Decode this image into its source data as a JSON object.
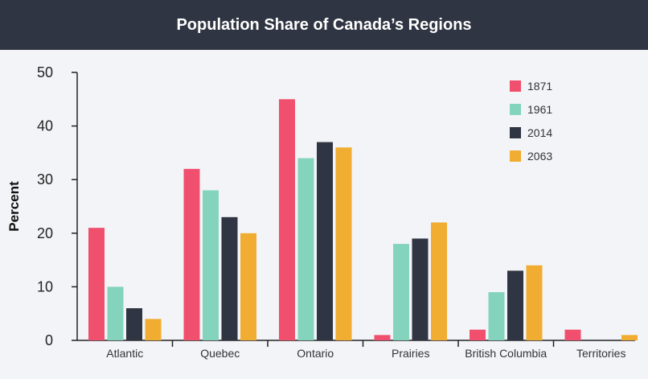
{
  "chart_data": {
    "type": "bar",
    "title": "Population Share of Canada’s Regions",
    "xlabel": "",
    "ylabel": "Percent",
    "ylim": [
      0,
      50
    ],
    "yticks": [
      0,
      10,
      20,
      30,
      40,
      50
    ],
    "grid": false,
    "legend_position": "top-right",
    "categories": [
      "Atlantic",
      "Quebec",
      "Ontario",
      "Prairies",
      "British Columbia",
      "Territories"
    ],
    "series": [
      {
        "name": "1871",
        "color": "#f0506e",
        "values": [
          21,
          32,
          45,
          1,
          2,
          2
        ]
      },
      {
        "name": "1961",
        "color": "#84d4bd",
        "values": [
          10,
          28,
          34,
          18,
          9,
          0
        ]
      },
      {
        "name": "2014",
        "color": "#2f3542",
        "values": [
          6,
          23,
          37,
          19,
          13,
          0
        ]
      },
      {
        "name": "2063",
        "color": "#f1ad31",
        "values": [
          4,
          20,
          36,
          22,
          14,
          1
        ]
      }
    ]
  }
}
